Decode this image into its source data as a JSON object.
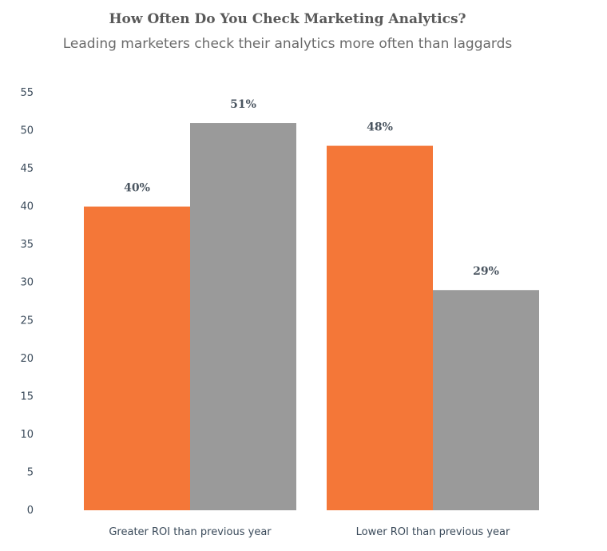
{
  "chart_data": {
    "type": "bar",
    "title": "How Often Do You Check Marketing Analytics?",
    "subtitle": "Leading marketers check their analytics more often than laggards",
    "categories": [
      "Greater ROI than previous year",
      "Lower ROI than previous year"
    ],
    "series": [
      {
        "color": "#f47738",
        "values": [
          40,
          48
        ],
        "labels": [
          "40%",
          "48%"
        ]
      },
      {
        "color": "#9a9a9a",
        "values": [
          51,
          29
        ],
        "labels": [
          "51%",
          "29%"
        ]
      }
    ],
    "xlabel": "",
    "ylabel": "",
    "ylim": [
      0,
      55
    ],
    "yticks": [
      0,
      5,
      10,
      15,
      20,
      25,
      30,
      35,
      40,
      45,
      50,
      55
    ],
    "grid": false,
    "legend": "none"
  }
}
